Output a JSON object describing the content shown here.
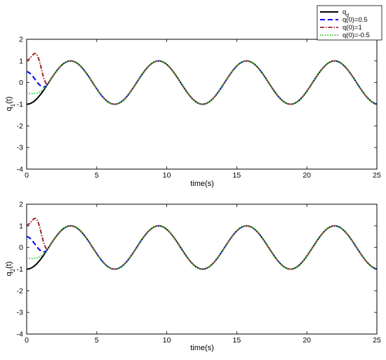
{
  "legend": {
    "entries": [
      {
        "label": "q",
        "sub": "d",
        "color": "#000000",
        "dash": "solid"
      },
      {
        "label": "q(0)=0.5",
        "sub": "",
        "color": "#0000ff",
        "dash": "dash"
      },
      {
        "label": "q(0)=1",
        "sub": "",
        "color": "#a0202a",
        "dash": "dashdot"
      },
      {
        "label": "q(0)=-0.5",
        "sub": "",
        "color": "#33cc33",
        "dash": "dot"
      }
    ]
  },
  "chart_data": [
    {
      "type": "line",
      "xlabel": "time(s)",
      "ylabel": "q",
      "ylabel_sub": "1",
      "ylabel_suffix": "(t)",
      "xlim": [
        0,
        25
      ],
      "ylim": [
        -4,
        2
      ],
      "xticks": [
        "0",
        "5",
        "10",
        "15",
        "20",
        "25"
      ],
      "yticks": [
        "2",
        "1",
        "0",
        "-1",
        "-2",
        "-3",
        "-4"
      ],
      "reference": {
        "form": "-cos(t)",
        "period_s": 6.28,
        "amplitude": 1
      },
      "initial_conditions": {
        "q(0)=0.5": 0.5,
        "q(0)=1": 1.0,
        "q(0)=-0.5": -0.5
      },
      "transient_peak_q(0)=1": 1.2,
      "converge_time_s": 1.5,
      "legend_position": "top-right"
    },
    {
      "type": "line",
      "xlabel": "time(s)",
      "ylabel": "q",
      "ylabel_sub": "2",
      "ylabel_suffix": "(t)",
      "xlim": [
        0,
        25
      ],
      "ylim": [
        -4,
        2
      ],
      "xticks": [
        "0",
        "5",
        "10",
        "15",
        "20",
        "25"
      ],
      "yticks": [
        "2",
        "1",
        "0",
        "-1",
        "-2",
        "-3",
        "-4"
      ],
      "reference": {
        "form": "-cos(t)",
        "period_s": 6.28,
        "amplitude": 1
      },
      "initial_conditions": {
        "q(0)=0.5": 0.5,
        "q(0)=1": 1.0,
        "q(0)=-0.5": -0.5
      },
      "transient_peak_q(0)=1": 1.2,
      "converge_time_s": 1.5
    }
  ]
}
